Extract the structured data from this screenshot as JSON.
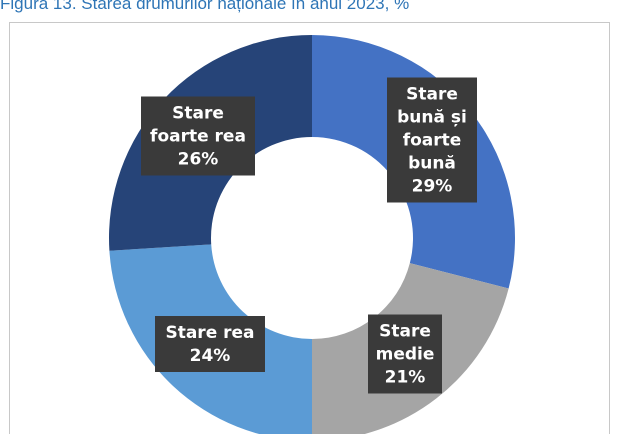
{
  "figure": {
    "title": "Figura 13. Starea drumurilor naționale în anul 2023, %"
  },
  "chart_data": {
    "type": "pie",
    "variant": "donut",
    "unit": "%",
    "slices": [
      {
        "label": "Stare bună și foarte bună",
        "label_lines": [
          "Stare",
          "bună și",
          "foarte",
          "bună",
          "29%"
        ],
        "value": 29,
        "color": "#4472c4"
      },
      {
        "label": "Stare medie",
        "label_lines": [
          "Stare",
          "medie",
          "21%"
        ],
        "value": 21,
        "color": "#a5a5a5"
      },
      {
        "label": "Stare rea",
        "label_lines": [
          "Stare rea",
          "24%"
        ],
        "value": 24,
        "color": "#5b9bd5"
      },
      {
        "label": "Stare foarte rea",
        "label_lines": [
          "Stare",
          "foarte rea",
          "26%"
        ],
        "value": 26,
        "color": "#264478"
      }
    ]
  }
}
